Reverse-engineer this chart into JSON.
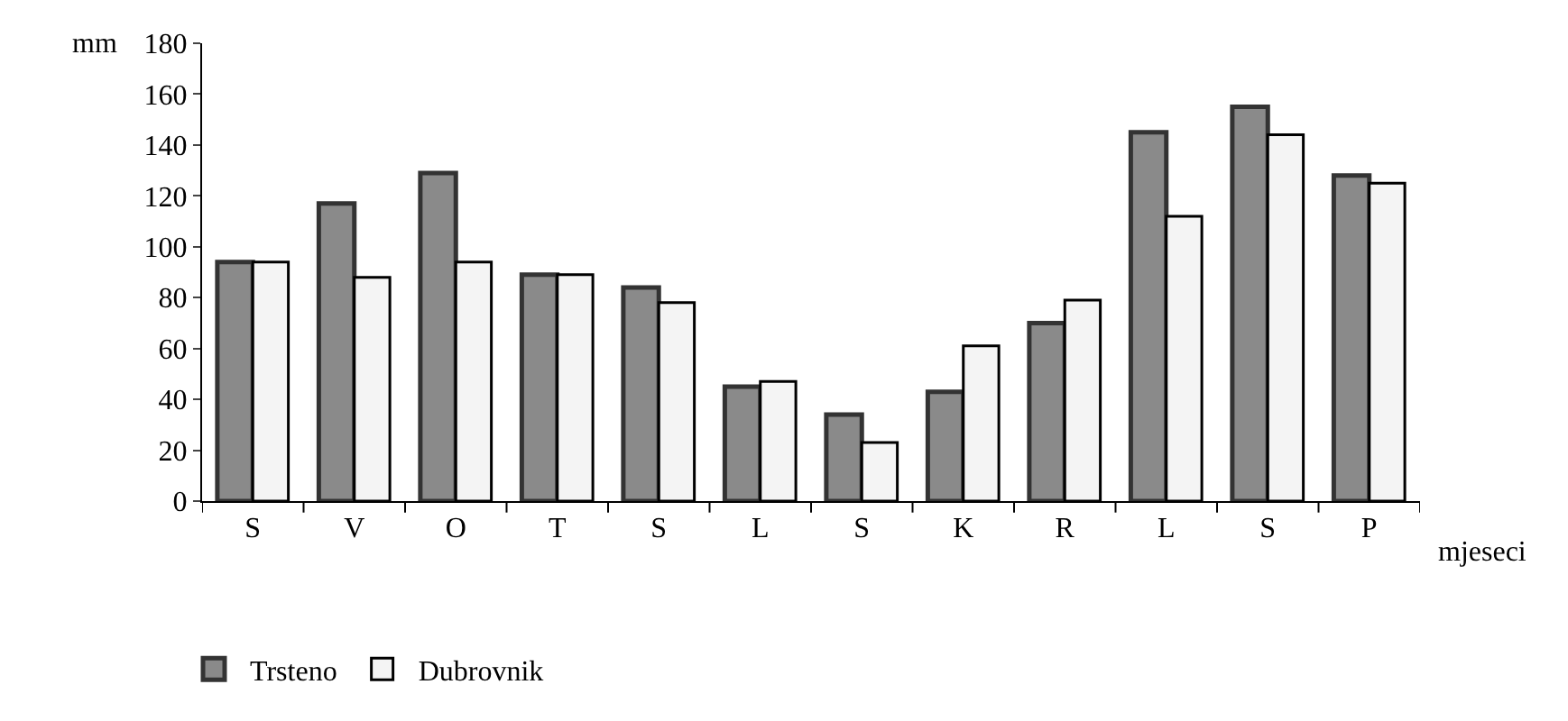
{
  "chart_data": {
    "type": "bar",
    "categories": [
      "S",
      "V",
      "O",
      "T",
      "S",
      "L",
      "S",
      "K",
      "R",
      "L",
      "S",
      "P"
    ],
    "series": [
      {
        "name": "Trsteno",
        "color": "#8a8a8a",
        "values": [
          94,
          117,
          129,
          89,
          84,
          45,
          34,
          43,
          70,
          145,
          155,
          128
        ]
      },
      {
        "name": "Dubrovnik",
        "color": "#f4f4f4",
        "values": [
          94,
          88,
          94,
          89,
          78,
          47,
          23,
          61,
          79,
          112,
          144,
          125
        ]
      }
    ],
    "xlabel": "mjeseci",
    "ylabel": "mm",
    "ylim": [
      0,
      180
    ],
    "yticks": [
      0,
      20,
      40,
      60,
      80,
      100,
      120,
      140,
      160,
      180
    ],
    "legend": "bottom left"
  }
}
